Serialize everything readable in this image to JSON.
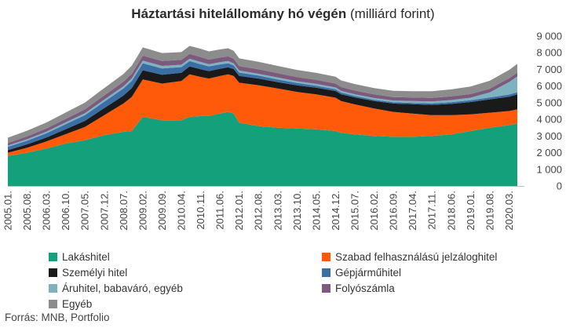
{
  "title": {
    "bold": "Háztartási hitelállomány hó végén",
    "normal": "(milliárd forint)"
  },
  "source": "Forrás: MNB, Portfolio",
  "chart_data": {
    "type": "area",
    "stacked": true,
    "x_tick_labels": [
      "2005.01.",
      "2005.08.",
      "2006.03.",
      "2006.10.",
      "2007.05.",
      "2007.12.",
      "2008.07.",
      "2009.02.",
      "2009.09.",
      "2010.04.",
      "2010.11.",
      "2011.06.",
      "2012.01.",
      "2012.08.",
      "2013.03.",
      "2013.10.",
      "2014.05.",
      "2014.12.",
      "2015.07.",
      "2016.02.",
      "2016.09.",
      "2017.04.",
      "2017.11.",
      "2018.06.",
      "2019.01.",
      "2019.08.",
      "2020.03."
    ],
    "y_ticks": [
      "0",
      "1 000",
      "2 000",
      "3 000",
      "4 000",
      "5 000",
      "6 000",
      "7 000",
      "8 000",
      "9 000"
    ],
    "ylim": [
      0,
      9000
    ],
    "y_axis_position": "right",
    "grid": false,
    "legend_position": "bottom",
    "x": [
      "2005.01.",
      "2005.08.",
      "2006.03.",
      "2006.10.",
      "2007.05.",
      "2007.12.",
      "2008.07.",
      "2008.10.",
      "2009.02.",
      "2009.09.",
      "2010.04.",
      "2010.07.",
      "2010.11.",
      "2011.02.",
      "2011.06.",
      "2011.09.",
      "2011.11.",
      "2012.01.",
      "2012.08.",
      "2013.03.",
      "2013.10.",
      "2014.05.",
      "2014.12.",
      "2015.02.",
      "2015.07.",
      "2016.02.",
      "2016.09.",
      "2017.04.",
      "2017.11.",
      "2018.06.",
      "2019.01.",
      "2019.08.",
      "2020.03.",
      "2020.06."
    ],
    "series": [
      {
        "name": "Lakáshitel",
        "color": "#15a07c",
        "values": [
          1800,
          2000,
          2250,
          2550,
          2750,
          3050,
          3250,
          3300,
          4150,
          3950,
          3950,
          4150,
          4200,
          4200,
          4350,
          4450,
          4350,
          3800,
          3600,
          3500,
          3450,
          3400,
          3300,
          3200,
          3100,
          3000,
          2950,
          2950,
          3000,
          3100,
          3300,
          3500,
          3650,
          3750
        ]
      },
      {
        "name": "Szabad felhasználású jelzáloghitel",
        "color": "#ff5a0a",
        "values": [
          200,
          300,
          420,
          560,
          800,
          1200,
          1700,
          2050,
          2250,
          2200,
          2350,
          2550,
          2350,
          2250,
          2250,
          2250,
          2250,
          2400,
          2450,
          2350,
          2200,
          2100,
          2000,
          1900,
          1800,
          1650,
          1500,
          1400,
          1250,
          1150,
          1000,
          900,
          850,
          850
        ]
      },
      {
        "name": "Személyi hitel",
        "color": "#1a1a1a",
        "values": [
          150,
          200,
          240,
          300,
          360,
          430,
          480,
          530,
          550,
          530,
          500,
          480,
          460,
          450,
          440,
          430,
          420,
          410,
          400,
          390,
          390,
          400,
          400,
          410,
          420,
          450,
          500,
          560,
          620,
          680,
          740,
          800,
          860,
          900
        ]
      },
      {
        "name": "Gépjárműhitel",
        "color": "#3b6ea5",
        "values": [
          200,
          220,
          250,
          300,
          340,
          380,
          420,
          430,
          420,
          380,
          340,
          320,
          300,
          280,
          260,
          240,
          220,
          200,
          180,
          160,
          140,
          120,
          110,
          100,
          90,
          80,
          80,
          80,
          90,
          100,
          110,
          120,
          130,
          130
        ]
      },
      {
        "name": "Áruhitel, babaváró, egyéb",
        "color": "#7fb2bf",
        "values": [
          80,
          90,
          100,
          110,
          120,
          130,
          140,
          150,
          160,
          150,
          140,
          140,
          140,
          130,
          130,
          130,
          120,
          120,
          110,
          110,
          110,
          110,
          110,
          100,
          100,
          100,
          100,
          110,
          120,
          130,
          150,
          300,
          750,
          950
        ]
      },
      {
        "name": "Folyószámla",
        "color": "#7b5a7e",
        "values": [
          150,
          170,
          190,
          210,
          230,
          250,
          270,
          280,
          290,
          290,
          290,
          290,
          290,
          280,
          280,
          280,
          280,
          270,
          270,
          260,
          250,
          240,
          230,
          230,
          220,
          220,
          210,
          210,
          210,
          220,
          220,
          220,
          230,
          230
        ]
      },
      {
        "name": "Egyéb",
        "color": "#8c8c8c",
        "values": [
          320,
          340,
          360,
          380,
          410,
          440,
          470,
          490,
          500,
          480,
          470,
          480,
          500,
          490,
          490,
          490,
          480,
          460,
          450,
          440,
          430,
          420,
          410,
          400,
          390,
          380,
          370,
          380,
          400,
          420,
          450,
          480,
          500,
          520
        ]
      }
    ]
  }
}
